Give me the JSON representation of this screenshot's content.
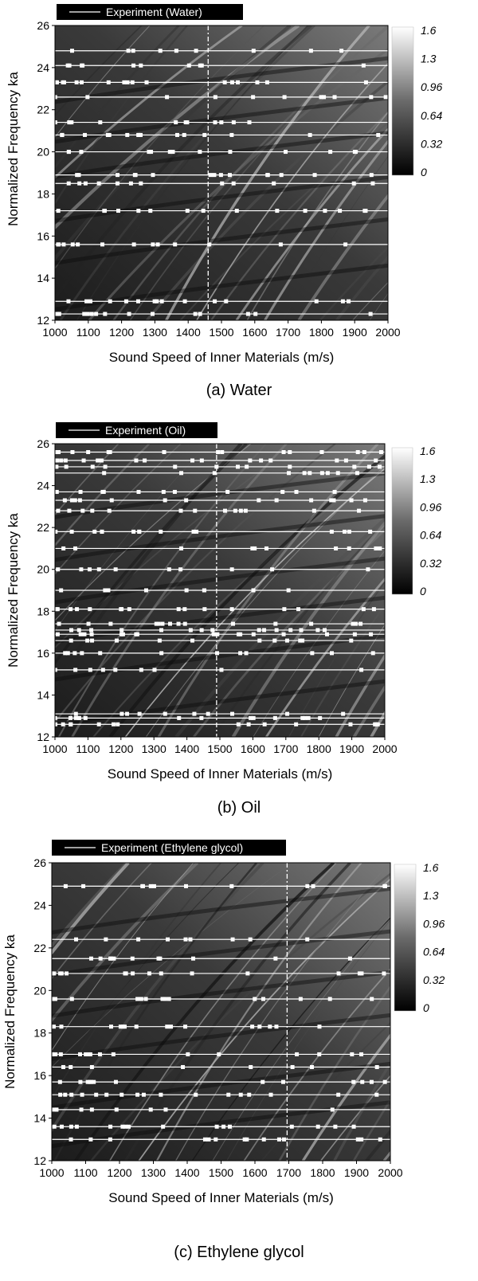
{
  "figure": {
    "colorbar": {
      "ticks": [
        "1.6",
        "1.3",
        "0.96",
        "0.64",
        "0.32",
        "0"
      ],
      "range": [
        0,
        1.6
      ],
      "colormap": "black-to-white"
    },
    "panels": [
      {
        "caption": "(a)  Water",
        "legend": "Experiment (Water)"
      },
      {
        "caption": "(b)  Oil",
        "legend": "Experiment (Oil)"
      },
      {
        "caption": "(c)  Ethylene glycol",
        "legend": "Experiment (Ethylene glycol)"
      }
    ]
  },
  "chart_data": [
    {
      "type": "heatmap",
      "xlabel": "Sound Speed of Inner Materials (m/s)",
      "ylabel": "Normalized Frequency ka",
      "xlim": [
        1000,
        2000
      ],
      "ylim": [
        12,
        26
      ],
      "xticks": [
        1000,
        1100,
        1200,
        1300,
        1400,
        1500,
        1600,
        1700,
        1800,
        1900,
        2000
      ],
      "yticks": [
        12,
        14,
        16,
        18,
        20,
        22,
        24,
        26
      ],
      "legend": "Experiment (Water)",
      "vertical_line_x": 1460,
      "experiment_lines_ka": [
        12.3,
        12.9,
        15.6,
        17.2,
        18.5,
        18.9,
        20.0,
        20.8,
        21.4,
        22.6,
        23.3,
        24.1,
        24.8
      ],
      "colorbar_range": [
        0,
        1.6
      ]
    },
    {
      "type": "heatmap",
      "xlabel": "Sound Speed of Inner Materials (m/s)",
      "ylabel": "Normalized Frequency ka",
      "xlim": [
        1000,
        2000
      ],
      "ylim": [
        12,
        26
      ],
      "xticks": [
        1000,
        1100,
        1200,
        1300,
        1400,
        1500,
        1600,
        1700,
        1800,
        1900,
        2000
      ],
      "yticks": [
        12,
        14,
        16,
        18,
        20,
        22,
        24,
        26
      ],
      "legend": "Experiment (Oil)",
      "vertical_line_x": 1490,
      "experiment_lines_ka": [
        12.6,
        12.9,
        13.1,
        15.2,
        16.0,
        16.6,
        16.9,
        17.1,
        17.4,
        18.1,
        19.0,
        20.0,
        21.0,
        21.8,
        22.8,
        23.3,
        23.7,
        24.6,
        24.9,
        25.2,
        25.6
      ],
      "colorbar_range": [
        0,
        1.6
      ]
    },
    {
      "type": "heatmap",
      "xlabel": "Sound Speed of Inner Materials (m/s)",
      "ylabel": "Normalized Frequency ka",
      "xlim": [
        1000,
        2000
      ],
      "ylim": [
        12,
        26
      ],
      "xticks": [
        1000,
        1100,
        1200,
        1300,
        1400,
        1500,
        1600,
        1700,
        1800,
        1900,
        2000
      ],
      "yticks": [
        12,
        14,
        16,
        18,
        20,
        22,
        24,
        26
      ],
      "legend": "Experiment (Ethylene glycol)",
      "vertical_line_x": 1695,
      "experiment_lines_ka": [
        13.0,
        13.6,
        14.4,
        15.1,
        15.7,
        16.4,
        17.0,
        18.3,
        19.6,
        20.8,
        21.5,
        22.4,
        24.9
      ],
      "colorbar_range": [
        0,
        1.6
      ]
    }
  ]
}
